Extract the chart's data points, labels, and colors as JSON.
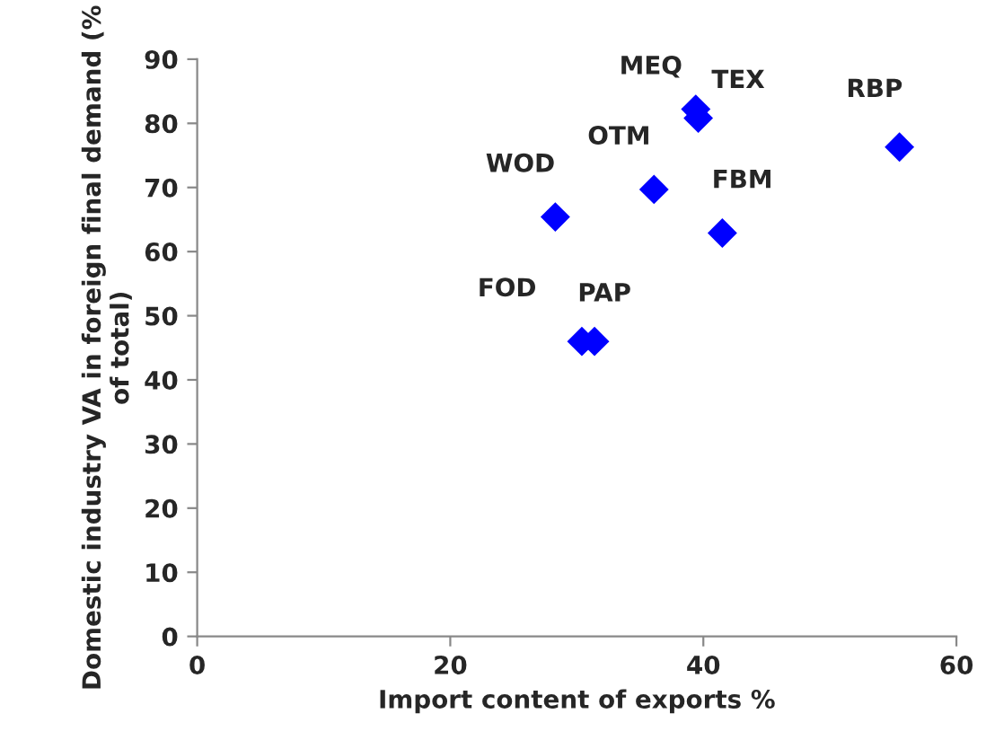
{
  "chart_data": {
    "type": "scatter",
    "xlabel": "Import content of exports %",
    "ylabel": "Domestic industry VA in foreign final demand (% of total)",
    "series": [
      {
        "color": "#0000ff",
        "x": [
          28.3,
          36.1,
          41.5,
          55.5,
          39.4,
          39.6,
          30.4,
          31.4
        ],
        "values": [
          65.4,
          69.7,
          62.9,
          76.3,
          82.2,
          80.8,
          46.0,
          46.0
        ]
      }
    ],
    "annotations": [
      {
        "text": "WOD",
        "x": 28.3,
        "y": 65.4
      },
      {
        "text": "OTM",
        "x": 36.1,
        "y": 69.7
      },
      {
        "text": "FBM",
        "x": 41.5,
        "y": 62.9
      },
      {
        "text": "RBP",
        "x": 55.5,
        "y": 76.3
      },
      {
        "text": "MEQ",
        "x": 39.4,
        "y": 82.2
      },
      {
        "text": "TEX",
        "x": 39.6,
        "y": 80.8
      },
      {
        "text": "FOD",
        "x": 30.4,
        "y": 46.0
      },
      {
        "text": "PAP",
        "x": 31.4,
        "y": 46.0
      }
    ],
    "xlim": [
      0,
      60
    ],
    "xticks": [
      0,
      20,
      40,
      60
    ],
    "ylim": [
      0,
      90
    ],
    "yticks": [
      0,
      10,
      20,
      30,
      40,
      50,
      60,
      70,
      80,
      90
    ],
    "marker": "diamond",
    "grid": false,
    "legend": false
  }
}
